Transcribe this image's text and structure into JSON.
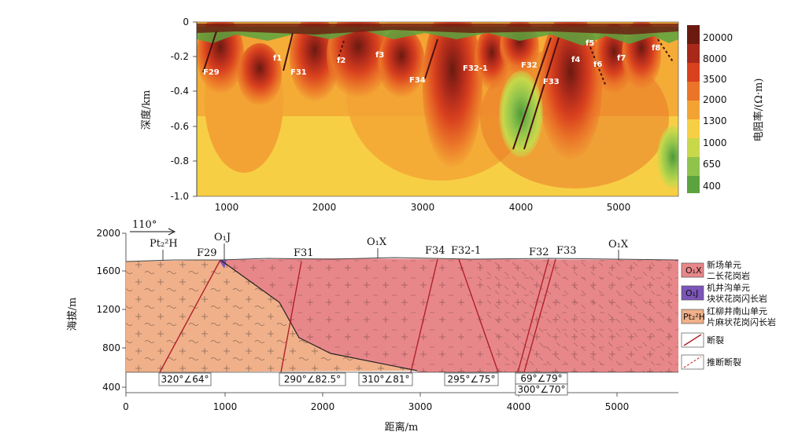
{
  "top_section": {
    "y_axis_label": "深度/km",
    "y_ticks": [
      "0",
      "-0.2",
      "-0.4",
      "-0.6",
      "-0.8",
      "-1.0"
    ],
    "x_ticks": [
      "1000",
      "2000",
      "3000",
      "4000",
      "5000"
    ],
    "colorbar_label": "电阻率/(Ω·m)",
    "colorbar_ticks": [
      "20000",
      "8000",
      "3500",
      "2000",
      "1300",
      "1000",
      "650",
      "400"
    ],
    "colorbar_colors": [
      "#6b1a10",
      "#a8281a",
      "#d8401e",
      "#ea7428",
      "#f3a333",
      "#f7cf45",
      "#c8d84a",
      "#8fc34c",
      "#5aa33e"
    ],
    "fault_labels": [
      "F29",
      "f1",
      "F31",
      "f2",
      "f3",
      "F34",
      "F32-1",
      "F32",
      "F33",
      "f4",
      "f5",
      "f6",
      "f7",
      "f8"
    ]
  },
  "bottom_section": {
    "y_axis_label": "海拔/m",
    "x_axis_label": "距离/m",
    "y_ticks": [
      "2000",
      "1600",
      "1200",
      "800",
      "400"
    ],
    "x_ticks": [
      "0",
      "1000",
      "2000",
      "3000",
      "4000",
      "5000"
    ],
    "azimuth": "110°",
    "unit_labels": {
      "pt": "Pt₂²H",
      "oj": "O₁J",
      "ox_left": "O₁X",
      "ox_right": "O₁X"
    },
    "fault_names": [
      "F29",
      "F31",
      "F34",
      "F32-1",
      "F32",
      "F33"
    ],
    "attitudes": [
      "320°∠64°",
      "290°∠82.5°",
      "310°∠81°",
      "295°∠75°",
      "69°∠79°",
      "300°∠70°"
    ]
  },
  "legend": {
    "items": [
      {
        "code": "O₁X",
        "line1": "新场单元",
        "line2": "二长花岗岩",
        "color": "#e8878a"
      },
      {
        "code": "O₁J",
        "line1": "机井沟单元",
        "line2": "块状花岗闪长岩",
        "color": "#7b55b8"
      },
      {
        "code": "Pt₂²H",
        "line1": "红柳井南山单元",
        "line2": "片麻状花岗闪长岩",
        "color": "#f0b08a"
      },
      {
        "code": "",
        "line1": "断裂",
        "line2": "",
        "color": "#b0202a"
      },
      {
        "code": "",
        "line1": "推断断裂",
        "line2": "",
        "color": "#d04040"
      }
    ]
  }
}
